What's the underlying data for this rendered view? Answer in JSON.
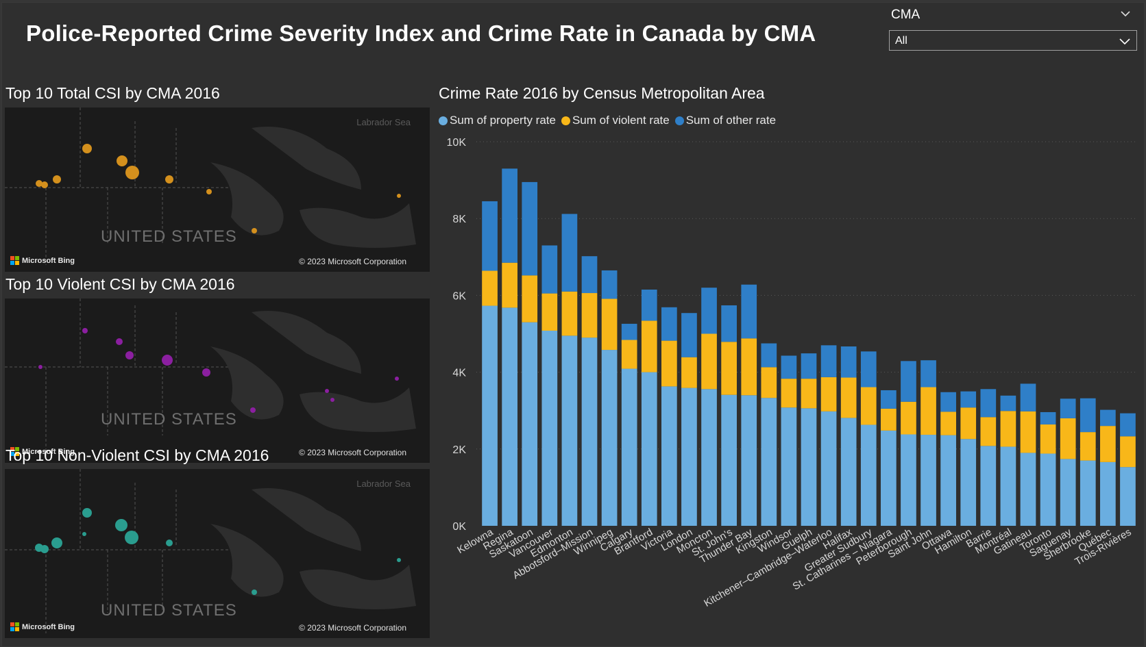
{
  "header": {
    "title": "Police-Reported Crime Severity Index and Crime Rate in Canada by CMA"
  },
  "slicer": {
    "title": "CMA",
    "value": "All",
    "chevron_icon": "chevron-down-icon"
  },
  "maps": [
    {
      "title": "Top 10 Total CSI by CMA 2016",
      "sea_label": "Labrador Sea",
      "country_label": "UNITED STATES",
      "bing_label": "Microsoft Bing",
      "copyright": "© 2023 Microsoft Corporation",
      "bubble_color": "#d4901d"
    },
    {
      "title": "Top 10 Violent CSI by CMA 2016",
      "sea_label": "",
      "country_label": "UNITED STATES",
      "bing_label": "Microsoft Bing",
      "copyright": "© 2023 Microsoft Corporation",
      "bubble_color": "#8b1fa0"
    },
    {
      "title": "Top 10 Non-Violent CSI by CMA 2016",
      "sea_label": "Labrador Sea",
      "country_label": "UNITED STATES",
      "bing_label": "Microsoft Bing",
      "copyright": "© 2023 Microsoft Corporation",
      "bubble_color": "#2a9d8f"
    }
  ],
  "chart_data": {
    "type": "bar",
    "stacked": true,
    "title": "Crime Rate 2016 by Census Metropolitan Area",
    "xlabel": "",
    "ylabel": "",
    "ylim": [
      0,
      10000
    ],
    "yticks": [
      0,
      2000,
      4000,
      6000,
      8000,
      10000
    ],
    "ytick_labels": [
      "0K",
      "2K",
      "4K",
      "6K",
      "8K",
      "10K"
    ],
    "gridlines": true,
    "legend_position": "top-left",
    "categories": [
      "Kelowna",
      "Regina",
      "Saskatoon",
      "Vancouver",
      "Edmonton",
      "Abbotsford–Mission",
      "Winnipeg",
      "Calgary",
      "Brantford",
      "Victoria",
      "London",
      "Moncton",
      "St. John's",
      "Thunder Bay",
      "Kingston",
      "Windsor",
      "Guelph",
      "Kitchener–Cambridge–Waterloo",
      "Halifax",
      "Greater Sudbury",
      "St. Catharines – Niagara",
      "Peterborough",
      "Saint John",
      "Ottawa",
      "Hamilton",
      "Barrie",
      "Montréal",
      "Gatineau",
      "Toronto",
      "Saguenay",
      "Sherbrooke",
      "Québec",
      "Trois-Rivières"
    ],
    "series": [
      {
        "name": "Sum of property rate",
        "color": "#6aaee0",
        "values": [
          5730,
          5680,
          5300,
          5080,
          4950,
          4900,
          4580,
          4090,
          4000,
          3630,
          3590,
          3560,
          3410,
          3400,
          3330,
          3080,
          3060,
          2980,
          2810,
          2630,
          2480,
          2380,
          2370,
          2360,
          2260,
          2080,
          2060,
          1900,
          1880,
          1740,
          1700,
          1660,
          1530
        ]
      },
      {
        "name": "Sum of violent rate",
        "color": "#f8b719",
        "values": [
          910,
          1170,
          1220,
          970,
          1150,
          1160,
          1330,
          750,
          1340,
          1190,
          800,
          1440,
          1380,
          1480,
          800,
          750,
          770,
          890,
          1050,
          980,
          570,
          850,
          1240,
          610,
          820,
          750,
          930,
          1080,
          760,
          1060,
          740,
          940,
          800
        ]
      },
      {
        "name": "Sum of other rate",
        "color": "#2f7fc8",
        "values": [
          1810,
          2450,
          2430,
          1250,
          2020,
          960,
          740,
          420,
          810,
          870,
          1150,
          1200,
          950,
          1400,
          620,
          600,
          660,
          830,
          810,
          930,
          480,
          1060,
          700,
          510,
          420,
          730,
          400,
          720,
          320,
          510,
          880,
          420,
          600
        ]
      }
    ]
  }
}
